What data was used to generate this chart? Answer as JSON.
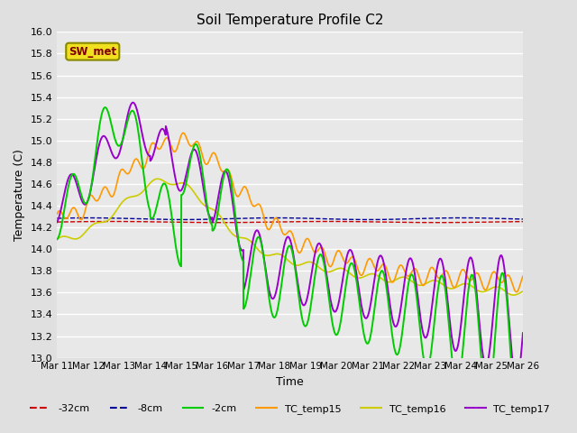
{
  "title": "Soil Temperature Profile C2",
  "xlabel": "Time",
  "ylabel": "Temperature (C)",
  "ylim": [
    13.0,
    16.0
  ],
  "yticks": [
    13.0,
    13.2,
    13.4,
    13.6,
    13.8,
    14.0,
    14.2,
    14.4,
    14.6,
    14.8,
    15.0,
    15.2,
    15.4,
    15.6,
    15.8,
    16.0
  ],
  "xtick_labels": [
    "Mar 11",
    "Mar 12",
    "Mar 13",
    "Mar 14",
    "Mar 15",
    "Mar 16",
    "Mar 17",
    "Mar 18",
    "Mar 19",
    "Mar 20",
    "Mar 21",
    "Mar 22",
    "Mar 23",
    "Mar 24",
    "Mar 25",
    "Mar 26"
  ],
  "bg_color": "#e0e0e0",
  "plot_bg_color": "#e8e8e8",
  "grid_color": "#ffffff",
  "annotation_text": "SW_met",
  "colors": {
    "neg32cm": "#cc0000",
    "neg8cm": "#000099",
    "neg2cm": "#00cc00",
    "tc15": "#ff9900",
    "tc16": "#cccc00",
    "tc17": "#9900cc"
  }
}
